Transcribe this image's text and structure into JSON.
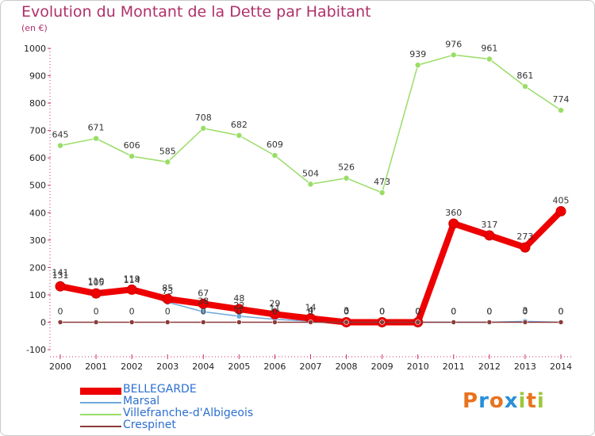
{
  "title": "Evolution du Montant de la Dette par Habitant",
  "unit_label": "(en €)",
  "brand": {
    "name": "Proxiti",
    "letters": [
      "P",
      "r",
      "o",
      "x",
      "i",
      "t",
      "i"
    ],
    "colors": [
      "#e8731e",
      "#2a8fd8",
      "#e8731e",
      "#2a8fd8",
      "#9bc83c",
      "#e8731e",
      "#9bc83c"
    ]
  },
  "chart_data": {
    "type": "line",
    "title": "Evolution du Montant de la Dette par Habitant",
    "ylabel": "(en €)",
    "xlabel": "",
    "x": [
      "2000",
      "2001",
      "2002",
      "2003",
      "2004",
      "2005",
      "2006",
      "2007",
      "2008",
      "2009",
      "2010",
      "2011",
      "2012",
      "2013",
      "2014"
    ],
    "ylim": [
      -100,
      1000
    ],
    "yticks": [
      "-100",
      "0",
      "100",
      "200",
      "300",
      "400",
      "500",
      "600",
      "700",
      "800",
      "900",
      "1000"
    ],
    "grid": false,
    "legend_position": "bottom-left",
    "series": [
      {
        "name": "BELLEGARDE",
        "color": "#ee0000",
        "values": [
          131,
          105,
          119,
          85,
          67,
          48,
          29,
          14,
          0,
          0,
          0,
          360,
          317,
          273,
          405
        ],
        "labels": [
          "131",
          "105",
          "119",
          "85",
          "67",
          "48",
          "29",
          "14",
          "0",
          "0",
          "0",
          "360",
          "317",
          "273",
          "405"
        ]
      },
      {
        "name": "Marsal",
        "color": "#6fa8dc",
        "values": [
          141,
          110,
          114,
          73,
          38,
          22,
          11,
          4,
          3,
          0,
          0,
          0,
          0,
          3,
          0
        ],
        "labels": [
          "141",
          "110",
          "114",
          "73",
          "38",
          "22",
          "11",
          "4",
          "3",
          "0",
          "0",
          "0",
          "0",
          "3",
          "0"
        ]
      },
      {
        "name": "Villefranche-d'Albigeois",
        "color": "#99dd66",
        "values": [
          645,
          671,
          606,
          585,
          708,
          682,
          609,
          504,
          526,
          473,
          939,
          976,
          961,
          861,
          774
        ],
        "labels": [
          "645",
          "671",
          "606",
          "585",
          "708",
          "682",
          "609",
          "504",
          "526",
          "473",
          "939",
          "976",
          "961",
          "861",
          "774"
        ]
      },
      {
        "name": "Crespinet",
        "color": "#8b3a3a",
        "values": [
          0,
          0,
          0,
          0,
          0,
          0,
          0,
          0,
          0,
          0,
          0,
          0,
          0,
          0,
          0
        ],
        "labels": [
          "0",
          "0",
          "0",
          "0",
          "0",
          "0",
          "0",
          "0",
          "0",
          "0",
          "0",
          "0",
          "0",
          "0",
          "0"
        ]
      }
    ]
  }
}
